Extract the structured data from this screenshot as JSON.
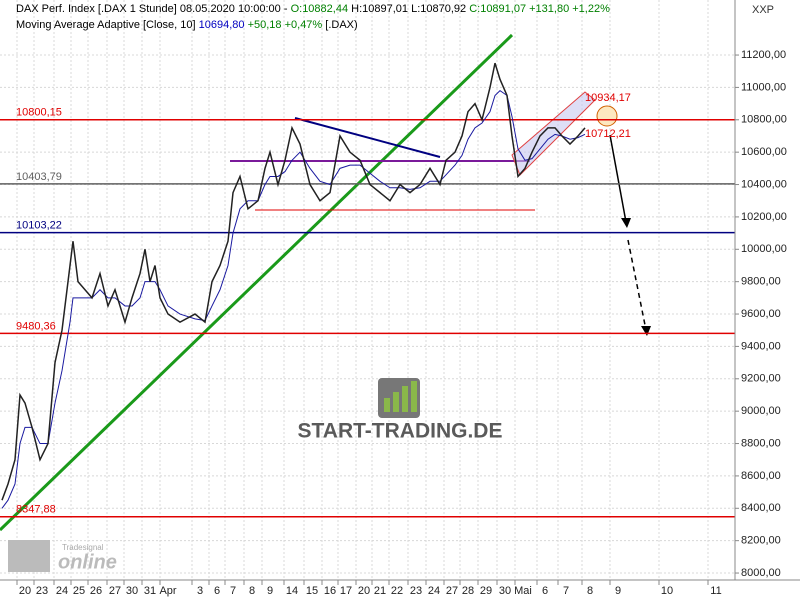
{
  "chart_data": {
    "type": "line",
    "header": [
      [
        {
          "text": "DAX Perf. Index [.DAX  1 Stunde] 08.05.2020 10:00:00 - ",
          "color": "#000000"
        },
        {
          "text": "O:10882,44",
          "color": "#008000"
        },
        {
          "text": " H:10897,01",
          "color": "#000000"
        },
        {
          "text": " L:10870,92",
          "color": "#000000"
        },
        {
          "text": " C:10891,07",
          "color": "#008000"
        },
        {
          "text": " +131,80 +1,22%",
          "color": "#008000"
        }
      ],
      [
        {
          "text": "Moving Average Adaptive [Close, 10] ",
          "color": "#000000"
        },
        {
          "text": "10694,80",
          "color": "#0000c0"
        },
        {
          "text": " +50,18 +0,47%",
          "color": "#008000"
        },
        {
          "text": " [.DAX)",
          "color": "#000000"
        }
      ]
    ],
    "corner_label": "XXP",
    "watermark": "START-TRADING.DE",
    "logo_top": "Tradesignal",
    "logo_main": "online",
    "xlim": [
      0,
      735
    ],
    "ylim": [
      7957,
      11540
    ],
    "yticks": [
      {
        "value": 8000,
        "label": "8000,00"
      },
      {
        "value": 8200,
        "label": "8200,00"
      },
      {
        "value": 8400,
        "label": "8400,00"
      },
      {
        "value": 8600,
        "label": "8600,00"
      },
      {
        "value": 8800,
        "label": "8800,00"
      },
      {
        "value": 9000,
        "label": "9000,00"
      },
      {
        "value": 9200,
        "label": "9200,00"
      },
      {
        "value": 9400,
        "label": "9400,00"
      },
      {
        "value": 9600,
        "label": "9600,00"
      },
      {
        "value": 9800,
        "label": "9800,00"
      },
      {
        "value": 10000,
        "label": "10000,00"
      },
      {
        "value": 10200,
        "label": "10200,00"
      },
      {
        "value": 10400,
        "label": "10400,00"
      },
      {
        "value": 10600,
        "label": "10600,00"
      },
      {
        "value": 10800,
        "label": "10800,00"
      },
      {
        "value": 11000,
        "label": "11000,00"
      },
      {
        "value": 11200,
        "label": "11200,00"
      }
    ],
    "xticks": [
      {
        "value": 25,
        "label": "20"
      },
      {
        "value": 42,
        "label": "23"
      },
      {
        "value": 62,
        "label": "24"
      },
      {
        "value": 79,
        "label": "25"
      },
      {
        "value": 96,
        "label": "26"
      },
      {
        "value": 115,
        "label": "27"
      },
      {
        "value": 132,
        "label": "30"
      },
      {
        "value": 150,
        "label": "31"
      },
      {
        "value": 168,
        "label": "Apr"
      },
      {
        "value": 200,
        "label": "3"
      },
      {
        "value": 217,
        "label": "6"
      },
      {
        "value": 233,
        "label": "7"
      },
      {
        "value": 252,
        "label": "8"
      },
      {
        "value": 270,
        "label": "9"
      },
      {
        "value": 292,
        "label": "14"
      },
      {
        "value": 312,
        "label": "15"
      },
      {
        "value": 330,
        "label": "16"
      },
      {
        "value": 346,
        "label": "17"
      },
      {
        "value": 364,
        "label": "20"
      },
      {
        "value": 380,
        "label": "21"
      },
      {
        "value": 397,
        "label": "22"
      },
      {
        "value": 416,
        "label": "23"
      },
      {
        "value": 434,
        "label": "24"
      },
      {
        "value": 452,
        "label": "27"
      },
      {
        "value": 468,
        "label": "28"
      },
      {
        "value": 486,
        "label": "29"
      },
      {
        "value": 505,
        "label": "30"
      },
      {
        "value": 523,
        "label": "Mai"
      },
      {
        "value": 545,
        "label": "6"
      },
      {
        "value": 566,
        "label": "7"
      },
      {
        "value": 590,
        "label": "8"
      },
      {
        "value": 618,
        "label": "9"
      },
      {
        "value": 667,
        "label": "10"
      },
      {
        "value": 716,
        "label": "11"
      }
    ],
    "grid": true,
    "levels": [
      {
        "value": 10800.15,
        "label": "10800,15",
        "color": "#e00000"
      },
      {
        "value": 10403.79,
        "label": "10403,79",
        "color": "#606060"
      },
      {
        "value": 10103.22,
        "label": "10103,22",
        "color": "#000080"
      },
      {
        "value": 9480.36,
        "label": "9480,36",
        "color": "#e00000"
      },
      {
        "value": 8347.88,
        "label": "8347,88",
        "color": "#e00000"
      }
    ],
    "channel_labels": [
      {
        "value": 10934.17,
        "label": "10934,17",
        "x": 585
      },
      {
        "value": 10712.21,
        "label": "10712,21",
        "x": 585
      }
    ],
    "x": [
      2,
      8,
      15,
      20,
      25,
      32,
      40,
      48,
      55,
      62,
      70,
      73,
      78,
      85,
      92,
      100,
      108,
      115,
      125,
      132,
      140,
      145,
      150,
      155,
      160,
      168,
      180,
      195,
      205,
      212,
      220,
      228,
      233,
      240,
      248,
      258,
      265,
      270,
      278,
      285,
      292,
      300,
      310,
      320,
      330,
      340,
      350,
      360,
      370,
      380,
      390,
      400,
      410,
      420,
      430,
      440,
      446,
      455,
      462,
      468,
      475,
      482,
      490,
      495,
      500,
      507,
      512,
      518,
      525,
      532,
      540,
      548,
      555,
      562,
      570,
      578,
      585
    ],
    "series": [
      {
        "name": "DAX Perf. Index",
        "color": "#222222",
        "values": [
          8450,
          8550,
          8700,
          9100,
          9050,
          8900,
          8700,
          8800,
          9300,
          9500,
          9900,
          10050,
          9800,
          9750,
          9700,
          9850,
          9650,
          9750,
          9550,
          9700,
          9850,
          10000,
          9800,
          9900,
          9700,
          9600,
          9550,
          9600,
          9550,
          9800,
          9900,
          10050,
          10350,
          10450,
          10250,
          10300,
          10500,
          10600,
          10400,
          10550,
          10750,
          10650,
          10400,
          10300,
          10350,
          10700,
          10600,
          10550,
          10400,
          10350,
          10300,
          10400,
          10350,
          10400,
          10500,
          10400,
          10550,
          10600,
          10700,
          10850,
          10900,
          10800,
          11000,
          11150,
          11050,
          10950,
          10700,
          10450,
          10500,
          10600,
          10700,
          10750,
          10750,
          10700,
          10650,
          10700,
          10750
        ]
      },
      {
        "name": "Moving Average Adaptive",
        "color": "#1a1aa0",
        "values": [
          8400,
          8450,
          8550,
          8800,
          8900,
          8900,
          8800,
          8800,
          9050,
          9250,
          9550,
          9700,
          9700,
          9700,
          9700,
          9750,
          9700,
          9700,
          9650,
          9650,
          9700,
          9800,
          9800,
          9800,
          9750,
          9650,
          9600,
          9570,
          9560,
          9650,
          9750,
          9900,
          10100,
          10250,
          10300,
          10300,
          10400,
          10450,
          10450,
          10480,
          10550,
          10600,
          10500,
          10420,
          10400,
          10500,
          10520,
          10520,
          10470,
          10420,
          10380,
          10380,
          10370,
          10380,
          10420,
          10420,
          10460,
          10520,
          10580,
          10680,
          10750,
          10780,
          10850,
          10950,
          10980,
          10950,
          10820,
          10620,
          10550,
          10560,
          10620,
          10680,
          10710,
          10700,
          10680,
          10690,
          10710
        ]
      }
    ]
  }
}
